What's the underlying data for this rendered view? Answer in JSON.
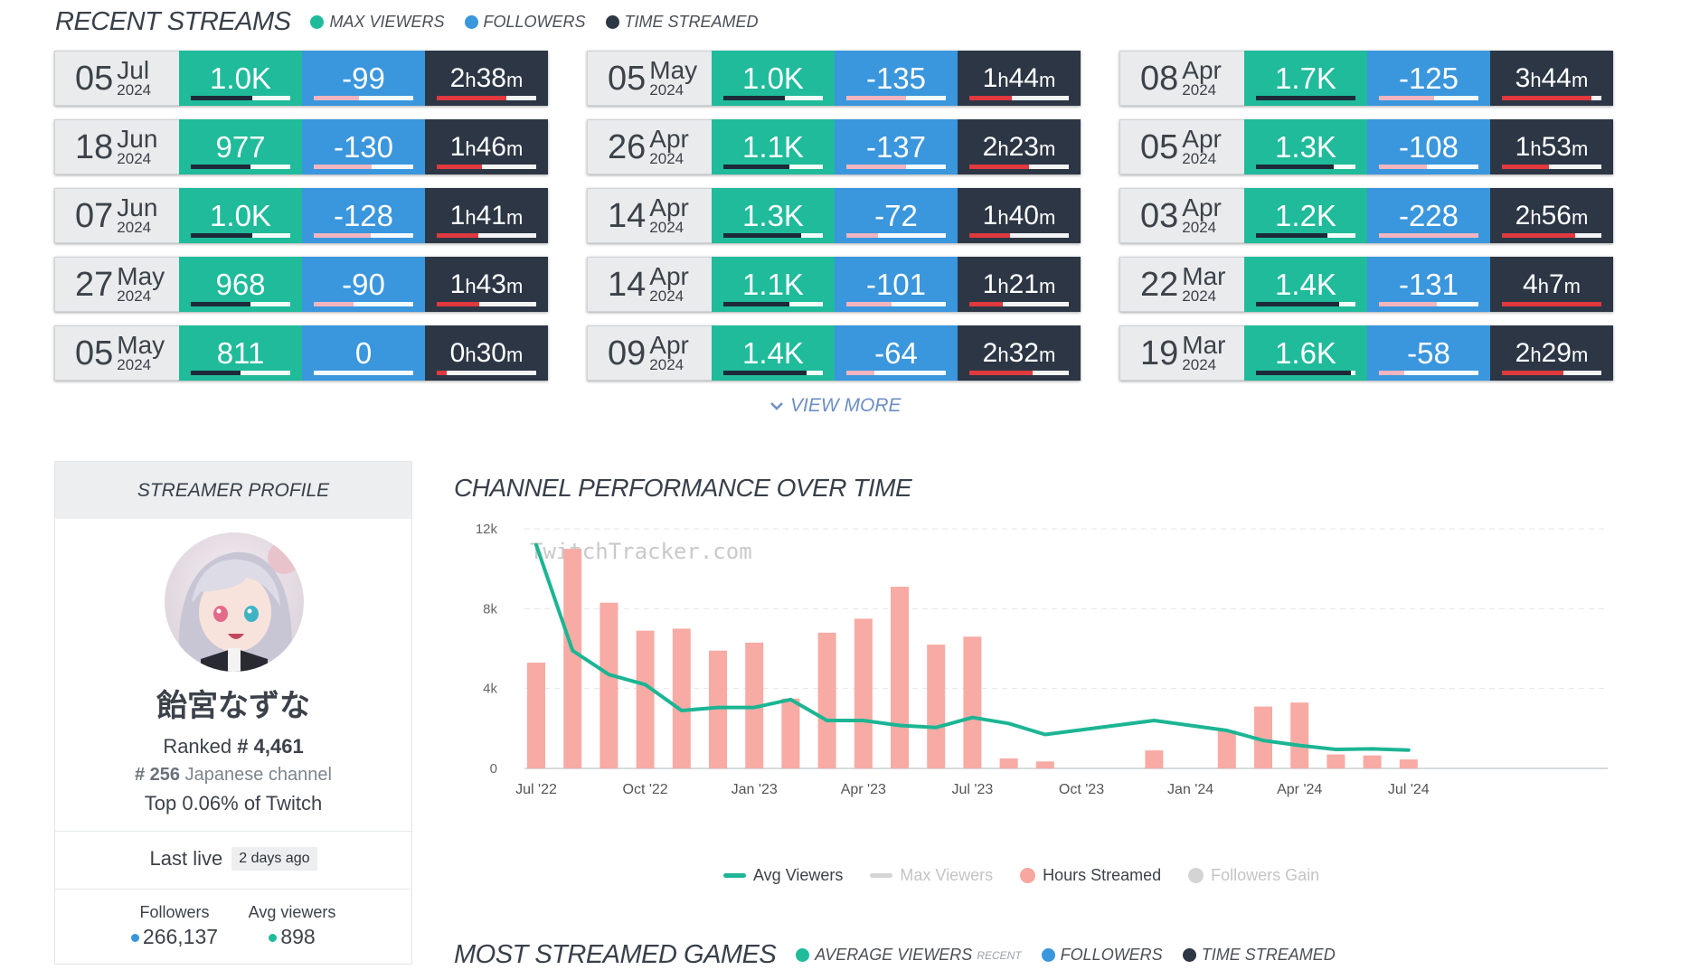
{
  "recent_streams": {
    "title": "RECENT STREAMS",
    "legend": [
      {
        "label": "MAX VIEWERS",
        "color": "#1fbb9a"
      },
      {
        "label": "FOLLOWERS",
        "color": "#3a96dd"
      },
      {
        "label": "TIME STREAMED",
        "color": "#2c3645"
      }
    ],
    "columns": [
      [
        {
          "day": "05",
          "month": "Jul",
          "year": "2024",
          "max_viewers": "1.0K",
          "followers": "-99",
          "hours": "2",
          "minutes": "38",
          "mv_level": 0.62,
          "fol_level": 0.45,
          "time_level": 0.7
        },
        {
          "day": "18",
          "month": "Jun",
          "year": "2024",
          "max_viewers": "977",
          "followers": "-130",
          "hours": "1",
          "minutes": "46",
          "mv_level": 0.6,
          "fol_level": 0.58,
          "time_level": 0.45
        },
        {
          "day": "07",
          "month": "Jun",
          "year": "2024",
          "max_viewers": "1.0K",
          "followers": "-128",
          "hours": "1",
          "minutes": "41",
          "mv_level": 0.62,
          "fol_level": 0.57,
          "time_level": 0.42
        },
        {
          "day": "27",
          "month": "May",
          "year": "2024",
          "max_viewers": "968",
          "followers": "-90",
          "hours": "1",
          "minutes": "43",
          "mv_level": 0.6,
          "fol_level": 0.4,
          "time_level": 0.43
        },
        {
          "day": "05",
          "month": "May",
          "year": "2024",
          "max_viewers": "811",
          "followers": "0",
          "hours": "0",
          "minutes": "30",
          "mv_level": 0.5,
          "fol_level": 0.0,
          "time_level": 0.1
        }
      ],
      [
        {
          "day": "05",
          "month": "May",
          "year": "2024",
          "max_viewers": "1.0K",
          "followers": "-135",
          "hours": "1",
          "minutes": "44",
          "mv_level": 0.62,
          "fol_level": 0.6,
          "time_level": 0.43
        },
        {
          "day": "26",
          "month": "Apr",
          "year": "2024",
          "max_viewers": "1.1K",
          "followers": "-137",
          "hours": "2",
          "minutes": "23",
          "mv_level": 0.66,
          "fol_level": 0.6,
          "time_level": 0.6
        },
        {
          "day": "14",
          "month": "Apr",
          "year": "2024",
          "max_viewers": "1.3K",
          "followers": "-72",
          "hours": "1",
          "minutes": "40",
          "mv_level": 0.78,
          "fol_level": 0.32,
          "time_level": 0.41
        },
        {
          "day": "14",
          "month": "Apr",
          "year": "2024",
          "max_viewers": "1.1K",
          "followers": "-101",
          "hours": "1",
          "minutes": "21",
          "mv_level": 0.66,
          "fol_level": 0.45,
          "time_level": 0.34
        },
        {
          "day": "09",
          "month": "Apr",
          "year": "2024",
          "max_viewers": "1.4K",
          "followers": "-64",
          "hours": "2",
          "minutes": "32",
          "mv_level": 0.84,
          "fol_level": 0.28,
          "time_level": 0.64
        }
      ],
      [
        {
          "day": "08",
          "month": "Apr",
          "year": "2024",
          "max_viewers": "1.7K",
          "followers": "-125",
          "hours": "3",
          "minutes": "44",
          "mv_level": 1.0,
          "fol_level": 0.55,
          "time_level": 0.9
        },
        {
          "day": "05",
          "month": "Apr",
          "year": "2024",
          "max_viewers": "1.3K",
          "followers": "-108",
          "hours": "1",
          "minutes": "53",
          "mv_level": 0.78,
          "fol_level": 0.48,
          "time_level": 0.47
        },
        {
          "day": "03",
          "month": "Apr",
          "year": "2024",
          "max_viewers": "1.2K",
          "followers": "-228",
          "hours": "2",
          "minutes": "56",
          "mv_level": 0.72,
          "fol_level": 1.0,
          "time_level": 0.74
        },
        {
          "day": "22",
          "month": "Mar",
          "year": "2024",
          "max_viewers": "1.4K",
          "followers": "-131",
          "hours": "4",
          "minutes": "7",
          "mv_level": 0.84,
          "fol_level": 0.58,
          "time_level": 1.0
        },
        {
          "day": "19",
          "month": "Mar",
          "year": "2024",
          "max_viewers": "1.6K",
          "followers": "-58",
          "hours": "2",
          "minutes": "29",
          "mv_level": 0.95,
          "fol_level": 0.25,
          "time_level": 0.62
        }
      ]
    ],
    "view_more": "VIEW MORE"
  },
  "profile": {
    "header": "STREAMER PROFILE",
    "name": "飴宮なずな",
    "ranked_label": "Ranked",
    "rank": "# 4,461",
    "lang_rank": "# 256",
    "lang_text": "Japanese channel",
    "top_text": "Top 0.06% of Twitch",
    "last_live_label": "Last live",
    "last_live_value": "2 days ago",
    "followers_label": "Followers",
    "followers_value": "266,137",
    "avg_label": "Avg viewers",
    "avg_value": "898",
    "followers_color": "#3a96dd",
    "avg_color": "#1fbb9a"
  },
  "chart": {
    "title": "CHANNEL PERFORMANCE OVER TIME",
    "watermark": "TwitchTracker.com",
    "legend": [
      {
        "label": "Avg Viewers",
        "color": "#1fb596",
        "active": true,
        "kind": "line"
      },
      {
        "label": "Max Viewers",
        "color": "#cfcfcf",
        "active": false,
        "kind": "line"
      },
      {
        "label": "Hours Streamed",
        "color": "#f7a6a0",
        "active": true,
        "kind": "dot"
      },
      {
        "label": "Followers Gain",
        "color": "#cfcfcf",
        "active": false,
        "kind": "dot"
      }
    ]
  },
  "chart_data": {
    "type": "bar",
    "ylim": [
      0,
      12000
    ],
    "y_ticks": [
      {
        "value": 0,
        "label": "0"
      },
      {
        "value": 4000,
        "label": "4k"
      },
      {
        "value": 8000,
        "label": "8k"
      },
      {
        "value": 12000,
        "label": "12k"
      }
    ],
    "x_ticks": [
      {
        "pos": 0,
        "label": "Jul '22"
      },
      {
        "pos": 3,
        "label": "Oct '22"
      },
      {
        "pos": 6,
        "label": "Jan '23"
      },
      {
        "pos": 9,
        "label": "Apr '23"
      },
      {
        "pos": 12,
        "label": "Jul '23"
      },
      {
        "pos": 15,
        "label": "Oct '23"
      },
      {
        "pos": 18,
        "label": "Jan '24"
      },
      {
        "pos": 21,
        "label": "Apr '24"
      },
      {
        "pos": 24,
        "label": "Jul '24"
      }
    ],
    "series": [
      {
        "name": "Hours Streamed",
        "kind": "bar",
        "points": [
          {
            "x": 0,
            "y": 5300
          },
          {
            "x": 1,
            "y": 11000
          },
          {
            "x": 2,
            "y": 8300
          },
          {
            "x": 3,
            "y": 6900
          },
          {
            "x": 4,
            "y": 7000
          },
          {
            "x": 5,
            "y": 5900
          },
          {
            "x": 6,
            "y": 6300
          },
          {
            "x": 7,
            "y": 3500
          },
          {
            "x": 8,
            "y": 6800
          },
          {
            "x": 9,
            "y": 7500
          },
          {
            "x": 10,
            "y": 9100
          },
          {
            "x": 11,
            "y": 6200
          },
          {
            "x": 12,
            "y": 6600
          },
          {
            "x": 13,
            "y": 500
          },
          {
            "x": 14,
            "y": 350
          },
          {
            "x": 17,
            "y": 900
          },
          {
            "x": 19,
            "y": 1900
          },
          {
            "x": 20,
            "y": 3100
          },
          {
            "x": 21,
            "y": 3300
          },
          {
            "x": 22,
            "y": 700
          },
          {
            "x": 23,
            "y": 650
          },
          {
            "x": 24,
            "y": 450
          }
        ]
      },
      {
        "name": "Avg Viewers",
        "kind": "line",
        "points": [
          {
            "x": 0,
            "y": 11200
          },
          {
            "x": 1,
            "y": 5900
          },
          {
            "x": 2,
            "y": 4700
          },
          {
            "x": 3,
            "y": 4200
          },
          {
            "x": 4,
            "y": 2900
          },
          {
            "x": 5,
            "y": 3050
          },
          {
            "x": 6,
            "y": 3050
          },
          {
            "x": 7,
            "y": 3450
          },
          {
            "x": 8,
            "y": 2400
          },
          {
            "x": 9,
            "y": 2400
          },
          {
            "x": 10,
            "y": 2150
          },
          {
            "x": 11,
            "y": 2050
          },
          {
            "x": 12,
            "y": 2550
          },
          {
            "x": 13,
            "y": 2250
          },
          {
            "x": 14,
            "y": 1700
          },
          {
            "x": 17,
            "y": 2400
          },
          {
            "x": 19,
            "y": 1900
          },
          {
            "x": 20,
            "y": 1400
          },
          {
            "x": 21,
            "y": 1150
          },
          {
            "x": 22,
            "y": 950
          },
          {
            "x": 23,
            "y": 980
          },
          {
            "x": 24,
            "y": 920
          }
        ]
      }
    ]
  },
  "games": {
    "title": "MOST STREAMED GAMES",
    "legend": [
      {
        "label": "AVERAGE VIEWERS",
        "sub": "RECENT",
        "color": "#1fbb9a"
      },
      {
        "label": "FOLLOWERS",
        "sub": "",
        "color": "#3a96dd"
      },
      {
        "label": "TIME STREAMED",
        "sub": "",
        "color": "#2c3645"
      }
    ]
  }
}
